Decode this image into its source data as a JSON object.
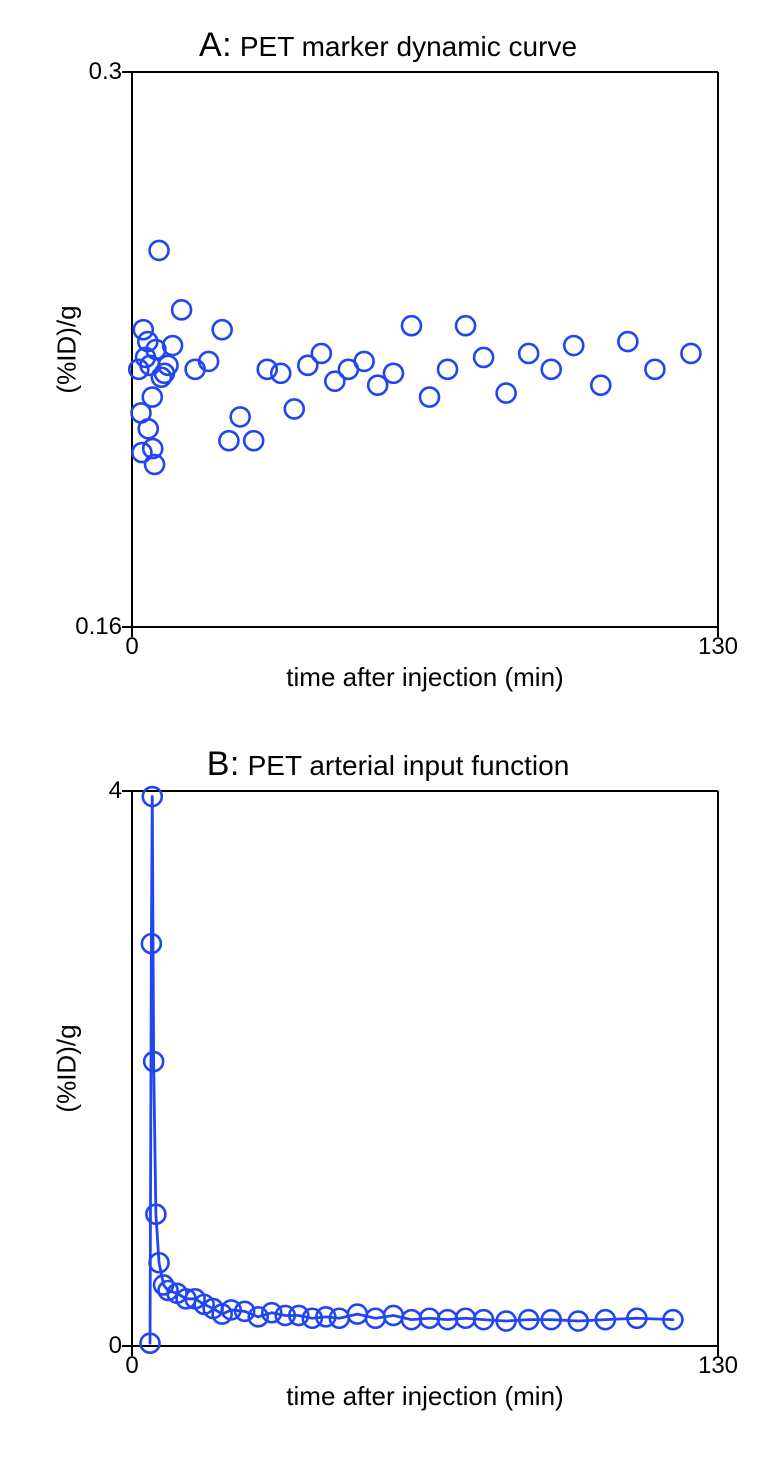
{
  "background_color": "#ffffff",
  "marker": {
    "stroke": "#2146f1",
    "stroke_width": 2.6,
    "radius": 9.5,
    "fill": "none"
  },
  "line": {
    "stroke": "#2146f1",
    "stroke_width": 2.8
  },
  "axis": {
    "stroke": "#000000",
    "stroke_width": 2
  },
  "fonts": {
    "title_label_size": 34,
    "title_text_size": 28,
    "tick_size": 24,
    "axis_label_size": 26,
    "family": "Helvetica"
  },
  "panelA": {
    "title_label": "A:",
    "title_text": "PET marker dynamic curve",
    "type": "scatter",
    "xlabel": "time after injection (min)",
    "ylabel": "(%ID)/g",
    "xlim": [
      0,
      130
    ],
    "ylim": [
      0.16,
      0.3
    ],
    "xticks": [
      0,
      130
    ],
    "yticks": [
      0.16,
      0.3
    ],
    "xtick_labels": [
      "0",
      "130"
    ],
    "ytick_labels": [
      "0.16",
      "0.3"
    ],
    "connect": false,
    "points": [
      [
        1.5,
        0.225
      ],
      [
        2.0,
        0.214
      ],
      [
        2.2,
        0.204
      ],
      [
        2.5,
        0.235
      ],
      [
        3.0,
        0.228
      ],
      [
        3.5,
        0.232
      ],
      [
        3.6,
        0.21
      ],
      [
        4.0,
        0.226
      ],
      [
        4.5,
        0.218
      ],
      [
        4.6,
        0.205
      ],
      [
        5.0,
        0.201
      ],
      [
        5.3,
        0.23
      ],
      [
        6.0,
        0.255
      ],
      [
        6.5,
        0.223
      ],
      [
        7.2,
        0.224
      ],
      [
        8.0,
        0.226
      ],
      [
        9.0,
        0.231
      ],
      [
        11.0,
        0.24
      ],
      [
        14.0,
        0.225
      ],
      [
        17.0,
        0.227
      ],
      [
        20.0,
        0.235
      ],
      [
        21.5,
        0.207
      ],
      [
        24.0,
        0.213
      ],
      [
        27.0,
        0.207
      ],
      [
        30.0,
        0.225
      ],
      [
        33.0,
        0.224
      ],
      [
        36.0,
        0.215
      ],
      [
        39.0,
        0.226
      ],
      [
        42.0,
        0.229
      ],
      [
        45.0,
        0.222
      ],
      [
        48.0,
        0.225
      ],
      [
        51.5,
        0.227
      ],
      [
        54.5,
        0.221
      ],
      [
        58.0,
        0.224
      ],
      [
        62.0,
        0.236
      ],
      [
        66.0,
        0.218
      ],
      [
        70.0,
        0.225
      ],
      [
        74.0,
        0.236
      ],
      [
        78.0,
        0.228
      ],
      [
        83.0,
        0.219
      ],
      [
        88.0,
        0.229
      ],
      [
        93.0,
        0.225
      ],
      [
        98.0,
        0.231
      ],
      [
        104.0,
        0.221
      ],
      [
        110.0,
        0.232
      ],
      [
        116.0,
        0.225
      ],
      [
        124.0,
        0.229
      ]
    ]
  },
  "panelB": {
    "title_label": "B:",
    "title_text": "PET arterial input function",
    "type": "line-scatter",
    "xlabel": "time after injection (min)",
    "ylabel": "(%ID)/g",
    "xlim": [
      0,
      130
    ],
    "ylim": [
      0,
      4
    ],
    "xticks": [
      0,
      130
    ],
    "yticks": [
      0,
      4
    ],
    "xtick_labels": [
      "0",
      "130"
    ],
    "ytick_labels": [
      "0",
      "4"
    ],
    "connect": true,
    "points": [
      [
        4.0,
        0.02
      ],
      [
        4.3,
        2.9
      ],
      [
        4.5,
        3.96
      ],
      [
        4.8,
        2.05
      ],
      [
        5.3,
        0.95
      ],
      [
        6.0,
        0.6
      ],
      [
        7.0,
        0.44
      ],
      [
        8.0,
        0.4
      ],
      [
        10.0,
        0.38
      ],
      [
        12.0,
        0.34
      ],
      [
        14.0,
        0.34
      ],
      [
        16.0,
        0.3
      ],
      [
        18.0,
        0.27
      ],
      [
        20.0,
        0.23
      ],
      [
        22.0,
        0.26
      ],
      [
        25.0,
        0.25
      ],
      [
        28.0,
        0.21
      ],
      [
        31.0,
        0.24
      ],
      [
        34.0,
        0.22
      ],
      [
        37.0,
        0.22
      ],
      [
        40.0,
        0.2
      ],
      [
        43.0,
        0.21
      ],
      [
        46.0,
        0.2
      ],
      [
        50.0,
        0.23
      ],
      [
        54.0,
        0.2
      ],
      [
        58.0,
        0.22
      ],
      [
        62.0,
        0.19
      ],
      [
        66.0,
        0.2
      ],
      [
        70.0,
        0.19
      ],
      [
        74.0,
        0.2
      ],
      [
        78.0,
        0.19
      ],
      [
        83.0,
        0.18
      ],
      [
        88.0,
        0.19
      ],
      [
        93.0,
        0.19
      ],
      [
        99.0,
        0.18
      ],
      [
        105.0,
        0.19
      ],
      [
        112.0,
        0.2
      ],
      [
        120.0,
        0.19
      ]
    ]
  }
}
